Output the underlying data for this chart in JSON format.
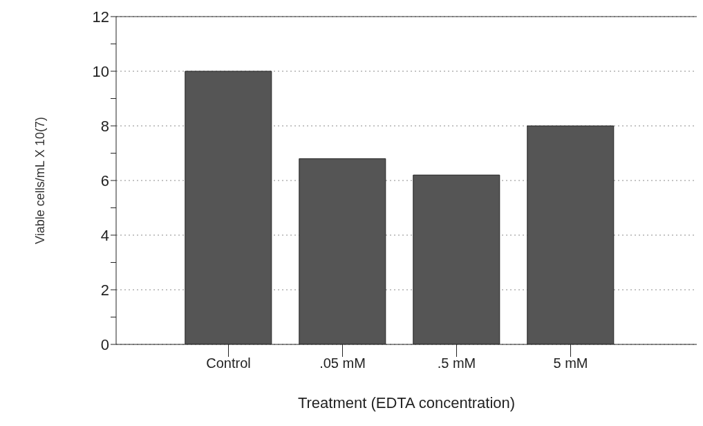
{
  "chart_data": {
    "type": "bar",
    "xlabel": "Treatment (EDTA concentration)",
    "ylabel": "Viable cells/mL X 10(7)",
    "categories": [
      "Control",
      ".05 mM",
      ".5 mM",
      "5 mM"
    ],
    "values": [
      10,
      6.8,
      6.2,
      8
    ],
    "color": "#555555",
    "ylim": [
      0,
      12
    ],
    "yticks": [
      0,
      {
        "value": 1,
        "label": null
      },
      2,
      {
        "value": 3,
        "label": null
      },
      4,
      {
        "value": 5,
        "label": null
      },
      6,
      {
        "value": 7,
        "label": null
      },
      8,
      {
        "value": 9,
        "label": null
      },
      10,
      {
        "value": 11,
        "label": null
      },
      12
    ],
    "grid": "y"
  }
}
